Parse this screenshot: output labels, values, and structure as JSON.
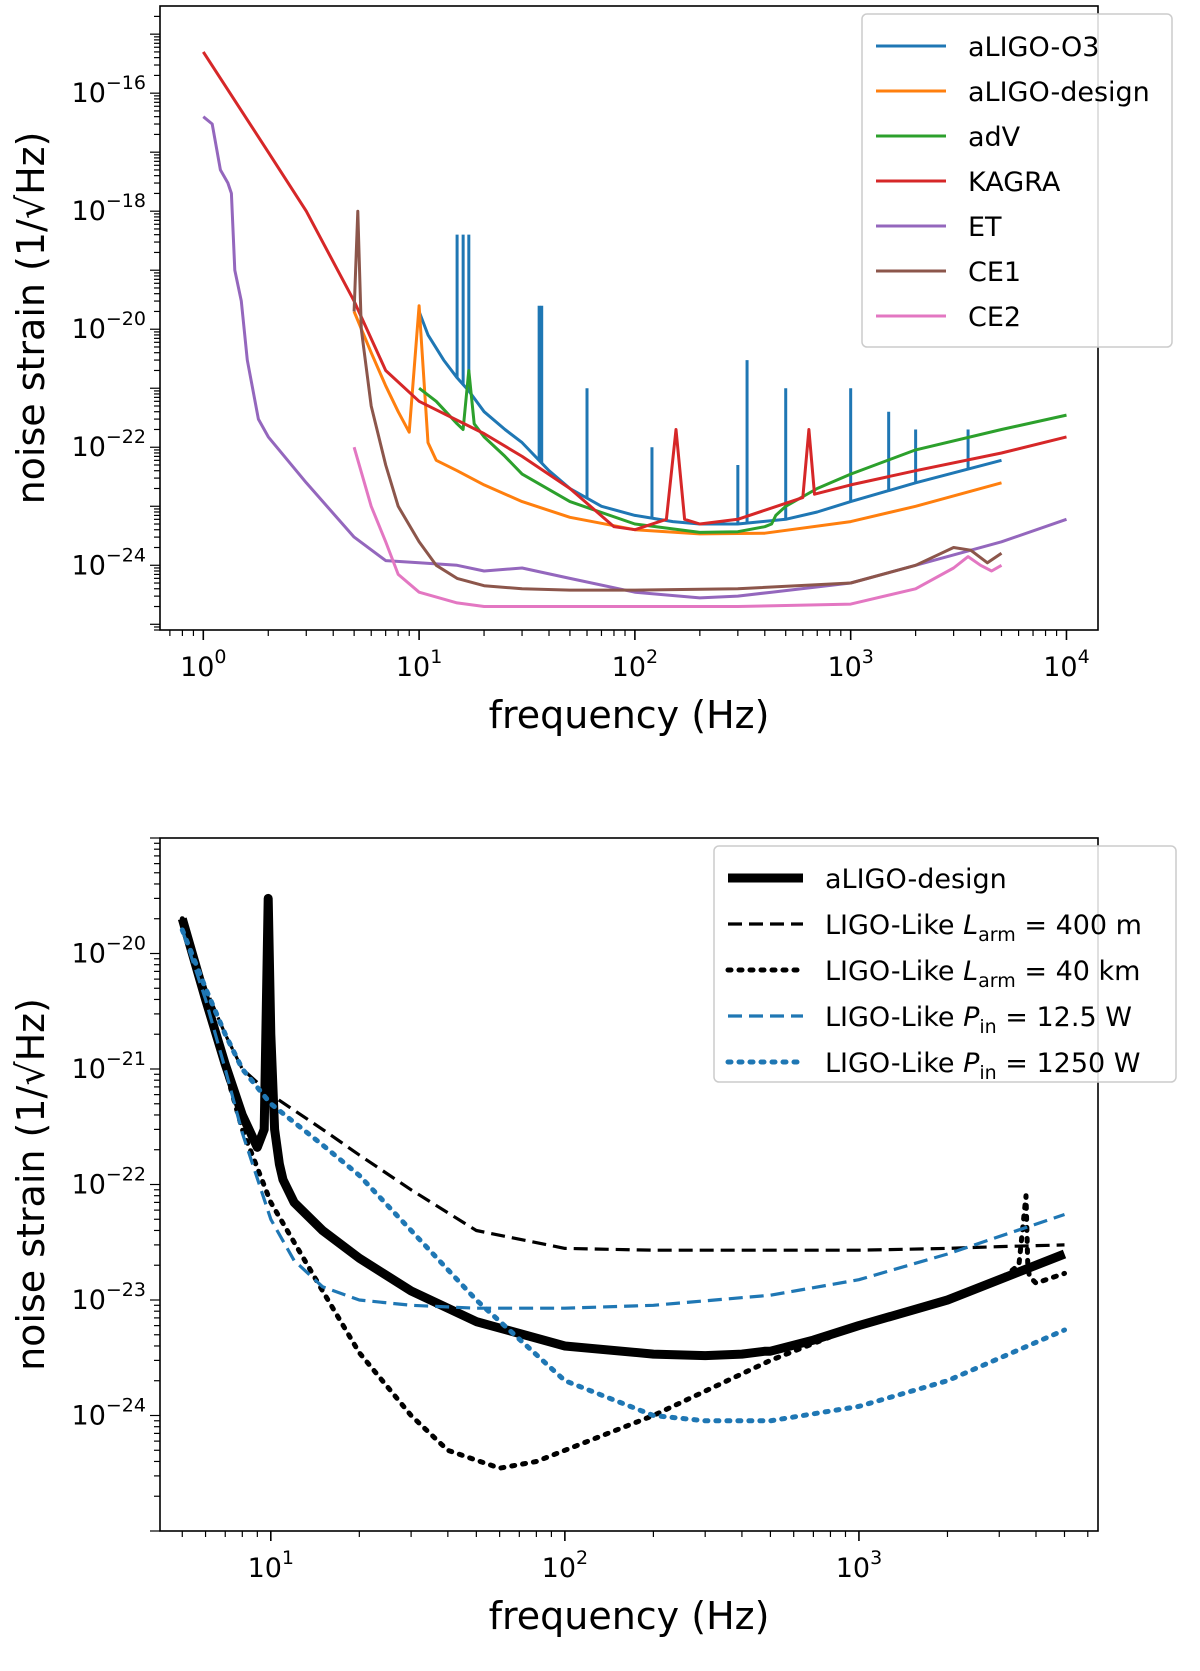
{
  "chart_data": [
    {
      "type": "line",
      "xscale": "log",
      "yscale": "log",
      "xlabel": "frequency (Hz)",
      "ylabel": "noise strain (1/√Hz)",
      "xlim": [
        0.63,
        14000
      ],
      "ylim": [
        8e-26,
        3e-15
      ],
      "xticks": [
        {
          "value": 1,
          "base": "10",
          "exp": "0"
        },
        {
          "value": 10,
          "base": "10",
          "exp": "1"
        },
        {
          "value": 100,
          "base": "10",
          "exp": "2"
        },
        {
          "value": 1000,
          "base": "10",
          "exp": "3"
        },
        {
          "value": 10000,
          "base": "10",
          "exp": "4"
        }
      ],
      "yticks": [
        {
          "value": 1e-24,
          "base": "10",
          "exp": "−24"
        },
        {
          "value": 1e-22,
          "base": "10",
          "exp": "−22"
        },
        {
          "value": 1e-20,
          "base": "10",
          "exp": "−20"
        },
        {
          "value": 1e-18,
          "base": "10",
          "exp": "−18"
        },
        {
          "value": 1e-16,
          "base": "10",
          "exp": "−16"
        }
      ],
      "legend_position": "top-right",
      "series": [
        {
          "name": "aLIGO-O3",
          "color": "#1f77b4",
          "style": "solid",
          "x": [
            10,
            11,
            13,
            15,
            17,
            20,
            25,
            30,
            40,
            50,
            70,
            100,
            150,
            200,
            300,
            500,
            700,
            1000,
            2000,
            5000
          ],
          "y": [
            2e-20,
            8e-21,
            3e-21,
            1.5e-21,
            9e-22,
            4e-22,
            2e-22,
            1.2e-22,
            4e-23,
            2e-23,
            1e-23,
            7e-24,
            5.5e-24,
            5e-24,
            5e-24,
            6e-24,
            8e-24,
            1.2e-23,
            2.5e-23,
            6e-23
          ],
          "spikes": [
            [
              15,
              4e-19
            ],
            [
              16,
              4e-19
            ],
            [
              17,
              4e-19
            ],
            [
              36,
              2.5e-20
            ],
            [
              37,
              2.5e-20
            ],
            [
              60,
              1e-21
            ],
            [
              120,
              1e-22
            ],
            [
              300,
              5e-23
            ],
            [
              331,
              3e-21
            ],
            [
              500,
              1e-21
            ],
            [
              1000,
              1e-21
            ],
            [
              1500,
              4e-22
            ],
            [
              2000,
              2e-22
            ],
            [
              3500,
              2e-22
            ]
          ]
        },
        {
          "name": "aLIGO-design",
          "color": "#ff7f0e",
          "style": "solid",
          "x": [
            5,
            6,
            7,
            8,
            9,
            10,
            11,
            12,
            15,
            20,
            30,
            50,
            100,
            200,
            400,
            1000,
            2000,
            5000
          ],
          "y": [
            2e-20,
            4e-21,
            1.1e-21,
            4e-22,
            1.8e-22,
            2.5e-20,
            1.2e-22,
            6e-23,
            4e-23,
            2.3e-23,
            1.2e-23,
            6.5e-24,
            4e-24,
            3.4e-24,
            3.5e-24,
            5.5e-24,
            1e-23,
            2.5e-23
          ]
        },
        {
          "name": "adV",
          "color": "#2ca02c",
          "style": "solid",
          "x": [
            10,
            12,
            15,
            16,
            17,
            18,
            20,
            25,
            30,
            50,
            100,
            200,
            300,
            400,
            430,
            450,
            500,
            700,
            1000,
            2000,
            5000,
            10000
          ],
          "y": [
            1e-21,
            6e-22,
            2.5e-22,
            2e-22,
            2e-21,
            2.5e-22,
            1.5e-22,
            7e-23,
            3.5e-23,
            1.2e-23,
            5e-24,
            3.6e-24,
            3.7e-24,
            4.5e-24,
            5e-24,
            7e-24,
            1e-23,
            2e-23,
            3.5e-23,
            9e-23,
            2e-22,
            3.5e-22
          ]
        },
        {
          "name": "KAGRA",
          "color": "#d62728",
          "style": "solid",
          "x": [
            1,
            2,
            3,
            5,
            7,
            10,
            20,
            30,
            50,
            80,
            100,
            140,
            155,
            170,
            200,
            300,
            600,
            640,
            680,
            1000,
            2000,
            5000,
            10000
          ],
          "y": [
            5e-16,
            1e-17,
            1e-18,
            3e-20,
            2e-21,
            6e-22,
            1.7e-22,
            7e-23,
            2e-23,
            4.5e-24,
            4e-24,
            6e-24,
            2e-22,
            6e-24,
            5e-24,
            6e-24,
            1.4e-23,
            2e-22,
            1.6e-23,
            2.3e-23,
            4e-23,
            8e-23,
            1.5e-22
          ]
        },
        {
          "name": "ET",
          "color": "#9467bd",
          "style": "solid",
          "x": [
            1,
            1.1,
            1.2,
            1.3,
            1.35,
            1.4,
            1.5,
            1.6,
            1.8,
            2,
            3,
            5,
            7,
            10,
            15,
            20,
            30,
            50,
            100,
            200,
            300,
            430,
            1000,
            2000,
            5000,
            10000
          ],
          "y": [
            4e-17,
            3e-17,
            5e-18,
            3e-18,
            2e-18,
            1e-19,
            3e-20,
            3e-21,
            3e-22,
            1.5e-22,
            2.5e-23,
            3e-24,
            1.2e-24,
            1.1e-24,
            1e-24,
            8e-25,
            9e-25,
            6e-25,
            3.5e-25,
            2.8e-25,
            3e-25,
            3.5e-25,
            5e-25,
            1e-24,
            2.5e-24,
            6e-24
          ]
        },
        {
          "name": "CE1",
          "color": "#8c564b",
          "style": "solid",
          "x": [
            5,
            5.2,
            5.4,
            6,
            7,
            8,
            10,
            12,
            15,
            20,
            30,
            50,
            100,
            300,
            1000,
            2000,
            3000,
            3600,
            4300,
            5000
          ],
          "y": [
            2e-20,
            1e-18,
            1e-20,
            5e-22,
            5e-23,
            1e-23,
            2.5e-24,
            1e-24,
            6e-25,
            4.5e-25,
            4e-25,
            3.8e-25,
            3.8e-25,
            4e-25,
            5e-25,
            1e-24,
            2e-24,
            1.8e-24,
            1.1e-24,
            1.6e-24
          ]
        },
        {
          "name": "CE2",
          "color": "#e377c2",
          "style": "solid",
          "x": [
            5,
            6,
            7,
            8,
            10,
            15,
            20,
            30,
            50,
            100,
            300,
            1000,
            2000,
            3000,
            3500,
            4000,
            4500,
            5000
          ],
          "y": [
            1e-22,
            1e-23,
            2.5e-24,
            7e-25,
            3.5e-25,
            2.3e-25,
            2e-25,
            2e-25,
            2e-25,
            2e-25,
            2e-25,
            2.2e-25,
            4e-25,
            9e-25,
            1.4e-24,
            1e-24,
            8e-25,
            1e-24
          ]
        }
      ]
    },
    {
      "type": "line",
      "xscale": "log",
      "yscale": "log",
      "xlabel": "frequency (Hz)",
      "ylabel": "noise strain (1/√Hz)",
      "xlim": [
        4.2,
        6500
      ],
      "ylim": [
        1e-25,
        1e-19
      ],
      "xticks": [
        {
          "value": 10,
          "base": "10",
          "exp": "1"
        },
        {
          "value": 100,
          "base": "10",
          "exp": "2"
        },
        {
          "value": 1000,
          "base": "10",
          "exp": "3"
        }
      ],
      "yticks": [
        {
          "value": 1e-24,
          "base": "10",
          "exp": "−24"
        },
        {
          "value": 1e-23,
          "base": "10",
          "exp": "−23"
        },
        {
          "value": 1e-22,
          "base": "10",
          "exp": "−22"
        },
        {
          "value": 1e-21,
          "base": "10",
          "exp": "−21"
        },
        {
          "value": 1e-20,
          "base": "10",
          "exp": "−20"
        }
      ],
      "legend_position": "top-right",
      "series": [
        {
          "name": "aLIGO-design",
          "legend_prefix": "aLIGO-design",
          "sym": "",
          "sub": "",
          "suffix": "",
          "color": "#000000",
          "style": "thick",
          "x": [
            5,
            6,
            7,
            8,
            9,
            9.5,
            9.8,
            10,
            10.3,
            10.7,
            11,
            12,
            15,
            20,
            30,
            50,
            100,
            200,
            300,
            400,
            480,
            500,
            700,
            1000,
            2000,
            5000
          ],
          "y": [
            2e-20,
            4e-21,
            1.1e-21,
            4e-22,
            2.1e-22,
            3e-22,
            3e-20,
            2e-21,
            3e-22,
            1.5e-22,
            1.1e-22,
            7e-23,
            4e-23,
            2.3e-23,
            1.2e-23,
            6.5e-24,
            4e-24,
            3.4e-24,
            3.3e-24,
            3.4e-24,
            3.6e-24,
            3.6e-24,
            4.5e-24,
            6e-24,
            1e-23,
            2.5e-23
          ]
        },
        {
          "name": "LIGO-Like L_arm = 400 m",
          "legend_prefix": "LIGO-Like ",
          "sym": "L",
          "sub": "arm",
          "suffix": " = 400 m",
          "color": "#000000",
          "style": "dashed",
          "x": [
            5,
            6,
            7,
            8,
            10,
            15,
            20,
            30,
            50,
            100,
            200,
            500,
            1000,
            2000,
            3000,
            5000
          ],
          "y": [
            2e-20,
            5e-21,
            2e-21,
            1e-21,
            6e-22,
            3e-22,
            1.8e-22,
            9e-23,
            4e-23,
            2.8e-23,
            2.7e-23,
            2.7e-23,
            2.7e-23,
            2.8e-23,
            2.9e-23,
            3e-23
          ]
        },
        {
          "name": "LIGO-Like L_arm = 40 km",
          "legend_prefix": "LIGO-Like ",
          "sym": "L",
          "sub": "arm",
          "suffix": " = 40 km",
          "color": "#000000",
          "style": "dotted",
          "x": [
            5,
            6,
            7,
            8,
            10,
            15,
            20,
            30,
            40,
            60,
            80,
            100,
            200,
            500,
            1000,
            2000,
            3000,
            3500,
            3700,
            3750,
            3800,
            4000,
            5000
          ],
          "y": [
            2e-20,
            4e-21,
            1e-21,
            3e-22,
            7e-23,
            1.2e-23,
            3.5e-24,
            1e-24,
            5e-25,
            3.5e-25,
            4e-25,
            5e-25,
            1e-24,
            3e-24,
            6e-24,
            1e-23,
            1.5e-23,
            2e-23,
            8e-23,
            2e-23,
            1.6e-23,
            1.4e-23,
            1.7e-23
          ]
        },
        {
          "name": "LIGO-Like P_in = 12.5 W",
          "legend_prefix": "LIGO-Like ",
          "sym": "P",
          "sub": "in",
          "suffix": " = 12.5 W",
          "color": "#1f77b4",
          "style": "dashed",
          "x": [
            5,
            6,
            7,
            8,
            10,
            12,
            15,
            20,
            30,
            50,
            100,
            200,
            500,
            1000,
            2000,
            5000
          ],
          "y": [
            1.6e-20,
            4e-21,
            1e-21,
            2.8e-22,
            5e-23,
            2.2e-23,
            1.3e-23,
            1e-23,
            9e-24,
            8.5e-24,
            8.5e-24,
            9e-24,
            1.1e-23,
            1.5e-23,
            2.5e-23,
            5.5e-23
          ]
        },
        {
          "name": "LIGO-Like P_in = 1250 W",
          "legend_prefix": "LIGO-Like ",
          "sym": "P",
          "sub": "in",
          "suffix": " = 1250 W",
          "color": "#1f77b4",
          "style": "dotted",
          "x": [
            5,
            6,
            7,
            8,
            10,
            15,
            20,
            30,
            50,
            100,
            200,
            300,
            500,
            1000,
            2000,
            5000
          ],
          "y": [
            1.6e-20,
            5e-21,
            2e-21,
            1e-21,
            5e-22,
            2.2e-22,
            1.2e-22,
            4e-23,
            1e-23,
            2e-24,
            1e-24,
            9e-25,
            9e-25,
            1.2e-24,
            2e-24,
            5.5e-24
          ]
        }
      ]
    }
  ]
}
